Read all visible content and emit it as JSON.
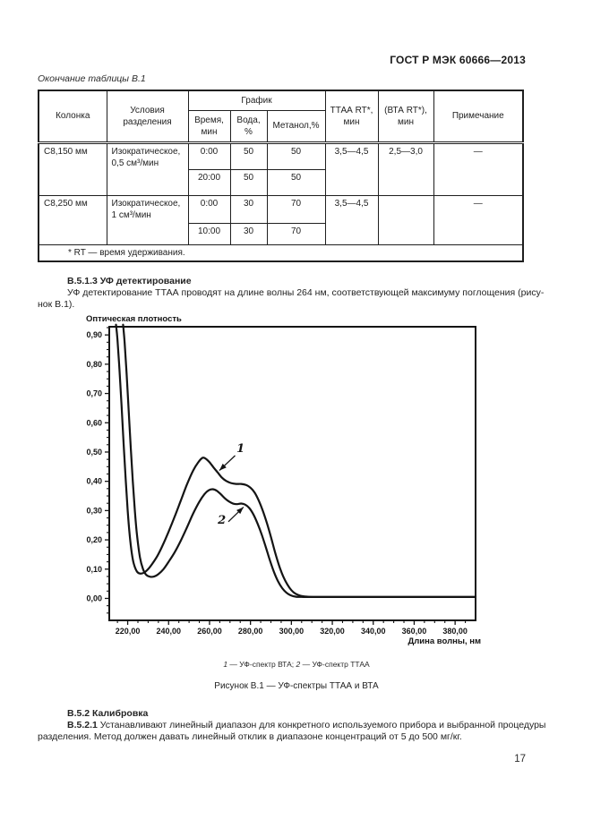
{
  "page": {
    "header": "ГОСТ Р МЭК 60666—2013",
    "number": "17"
  },
  "table": {
    "title": "Окончание таблицы В.1",
    "headers": {
      "col": "Колонка",
      "conditions": "Условия разделения",
      "graph": "График",
      "time": "Время, мин",
      "water": "Вода, %",
      "methanol": "Метанол,%",
      "ttaa": "ТТАА RT*, мин",
      "bta": "(ВТА RT*), мин",
      "note": "Примечание"
    },
    "rows": [
      {
        "col": "C8,150 мм",
        "cond": "Изократическое, 0,5 см³/мин",
        "sub": [
          {
            "time": "0:00",
            "water": "50",
            "methanol": "50"
          },
          {
            "time": "20:00",
            "water": "50",
            "methanol": "50"
          }
        ],
        "ttaa": "3,5—4,5",
        "bta": "2,5—3,0",
        "note": "—"
      },
      {
        "col": "C8,250 мм",
        "cond": "Изократическое, 1 см³/мин",
        "sub": [
          {
            "time": "0:00",
            "water": "30",
            "methanol": "70"
          },
          {
            "time": "10:00",
            "water": "30",
            "methanol": "70"
          }
        ],
        "ttaa": "3,5—4,5",
        "bta": "",
        "note": "—"
      }
    ],
    "footnote": "* RT — время удерживания."
  },
  "sections": {
    "s513_title": "В.5.1.3 УФ детектирование",
    "s513_line1": "УФ детектирование ТТАА проводят на длине волны 264 нм, соответствующей максимуму поглощения (рису-",
    "s513_line2": "нок В.1).",
    "legend": {
      "i1": "1",
      "t1": " — УФ-спектр ВТА; ",
      "i2": "2",
      "t2": " — УФ-спектр ТТАА"
    },
    "figure_caption": "Рисунок В.1 — УФ-спектры ТТАА и ВТА",
    "s52_title": "В.5.2 Калибровка",
    "s521_bold": "В.5.2.1",
    "s521_line1": " Устанавливают линейный диапазон для конкретного используемого прибора и выбранной процедуры",
    "s521_line2": "разделения. Метод должен давать линейный отклик в диапазоне концентраций от 5 до 500 мг/кг."
  },
  "chart_data": {
    "type": "line",
    "title": "",
    "ylabel": "Оптическая плотность",
    "xlabel": "Длина волны, нм",
    "xlim": [
      211,
      390
    ],
    "ylim": [
      -0.075,
      0.928
    ],
    "grid": false,
    "x_major_ticks": [
      220,
      240,
      260,
      280,
      300,
      320,
      340,
      360,
      380
    ],
    "x_tick_labels": [
      "220,00",
      "240,00",
      "260,00",
      "280,00",
      "300,00",
      "320,00",
      "340,00",
      "360,00",
      "380,00"
    ],
    "x_minor_step": 5,
    "y_major_ticks": [
      0,
      0.1,
      0.2,
      0.3,
      0.4,
      0.5,
      0.6,
      0.7,
      0.8,
      0.9
    ],
    "y_tick_labels": [
      "0,00",
      "0,10",
      "0,20",
      "0,30",
      "0,40",
      "0,50",
      "0,60",
      "0,70",
      "0,80",
      "0,90"
    ],
    "y_minor_step": 0.025,
    "series": [
      {
        "name": "УФ-спектр ВТА",
        "label": "1",
        "points": [
          [
            214.3,
            0.935
          ],
          [
            215,
            0.885
          ],
          [
            216,
            0.78
          ],
          [
            217,
            0.66
          ],
          [
            218,
            0.53
          ],
          [
            219,
            0.41
          ],
          [
            220,
            0.3
          ],
          [
            221,
            0.215
          ],
          [
            222,
            0.155
          ],
          [
            223,
            0.118
          ],
          [
            224.5,
            0.092
          ],
          [
            226,
            0.085
          ],
          [
            228,
            0.088
          ],
          [
            230,
            0.1
          ],
          [
            232,
            0.118
          ],
          [
            234.5,
            0.145
          ],
          [
            237,
            0.18
          ],
          [
            240,
            0.228
          ],
          [
            243,
            0.28
          ],
          [
            246,
            0.335
          ],
          [
            249,
            0.39
          ],
          [
            252,
            0.437
          ],
          [
            254.5,
            0.465
          ],
          [
            256.5,
            0.48
          ],
          [
            258,
            0.478
          ],
          [
            260,
            0.465
          ],
          [
            262,
            0.447
          ],
          [
            264,
            0.43
          ],
          [
            266,
            0.413
          ],
          [
            268,
            0.402
          ],
          [
            270.5,
            0.394
          ],
          [
            273,
            0.391
          ],
          [
            275.5,
            0.391
          ],
          [
            278,
            0.387
          ],
          [
            280,
            0.378
          ],
          [
            282,
            0.362
          ],
          [
            284,
            0.335
          ],
          [
            286,
            0.3
          ],
          [
            288,
            0.258
          ],
          [
            290,
            0.21
          ],
          [
            292,
            0.158
          ],
          [
            294,
            0.112
          ],
          [
            296,
            0.075
          ],
          [
            298,
            0.048
          ],
          [
            300,
            0.028
          ],
          [
            302,
            0.016
          ],
          [
            304.5,
            0.009
          ],
          [
            307.5,
            0.006
          ],
          [
            312,
            0.005
          ],
          [
            330,
            0.005
          ],
          [
            360,
            0.005
          ],
          [
            390,
            0.005
          ]
        ]
      },
      {
        "name": "УФ-спектр ТТАА",
        "label": "2",
        "points": [
          [
            217.75,
            0.935
          ],
          [
            218.5,
            0.875
          ],
          [
            219.5,
            0.765
          ],
          [
            220.5,
            0.64
          ],
          [
            221.5,
            0.515
          ],
          [
            222.5,
            0.4
          ],
          [
            223.5,
            0.3
          ],
          [
            224.5,
            0.22
          ],
          [
            226,
            0.14
          ],
          [
            227.5,
            0.1
          ],
          [
            229,
            0.081
          ],
          [
            231,
            0.074
          ],
          [
            233,
            0.075
          ],
          [
            235,
            0.083
          ],
          [
            237.5,
            0.1
          ],
          [
            240,
            0.125
          ],
          [
            243,
            0.158
          ],
          [
            246,
            0.198
          ],
          [
            249,
            0.243
          ],
          [
            252,
            0.29
          ],
          [
            255,
            0.33
          ],
          [
            257.5,
            0.356
          ],
          [
            259.5,
            0.369
          ],
          [
            261.5,
            0.373
          ],
          [
            263.5,
            0.368
          ],
          [
            265.5,
            0.356
          ],
          [
            267.5,
            0.342
          ],
          [
            269.5,
            0.331
          ],
          [
            271.5,
            0.324
          ],
          [
            273.5,
            0.322
          ],
          [
            275.5,
            0.324
          ],
          [
            277.5,
            0.32
          ],
          [
            279.5,
            0.308
          ],
          [
            281.5,
            0.286
          ],
          [
            283.5,
            0.255
          ],
          [
            285.5,
            0.218
          ],
          [
            287.5,
            0.175
          ],
          [
            289.5,
            0.13
          ],
          [
            291.5,
            0.09
          ],
          [
            293.5,
            0.058
          ],
          [
            295.5,
            0.035
          ],
          [
            297.5,
            0.02
          ],
          [
            299.5,
            0.011
          ],
          [
            302,
            0.006
          ],
          [
            306,
            0.005
          ],
          [
            330,
            0.005
          ],
          [
            360,
            0.005
          ],
          [
            390,
            0.005
          ]
        ]
      }
    ],
    "annotations": [
      {
        "text": "1",
        "tx": 275.2,
        "ty": 0.512,
        "x1": 272.5,
        "y1": 0.488,
        "x2": 264.8,
        "y2": 0.437
      },
      {
        "text": "2",
        "tx": 266.0,
        "ty": 0.268,
        "x1": 269.2,
        "y1": 0.262,
        "x2": 276.6,
        "y2": 0.312
      }
    ]
  }
}
